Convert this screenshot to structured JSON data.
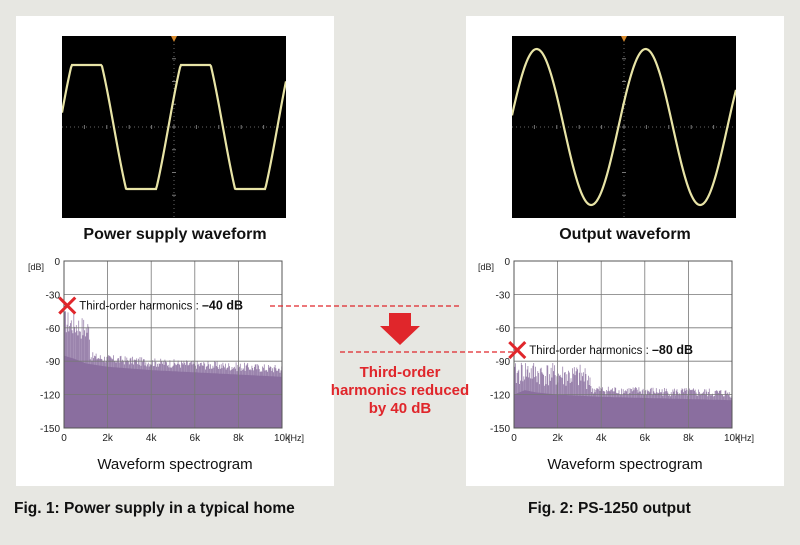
{
  "left": {
    "waveform_title": "Power supply waveform",
    "spectrogram_label": "Waveform spectrogram",
    "caption": "Fig. 1: Power supply in a typical home",
    "harmonic_label": "Third-order harmonics : ",
    "harmonic_value": "–40 dB"
  },
  "right": {
    "waveform_title": "Output waveform",
    "spectrogram_label": "Waveform spectrogram",
    "caption": "Fig. 2: PS-1250 output",
    "harmonic_label": "Third-order harmonics : ",
    "harmonic_value": "–80 dB"
  },
  "middle": {
    "line1": "Third-order",
    "line2": "harmonics reduced",
    "line3": "by 40 dB"
  },
  "colors": {
    "accent_red": "#e0262b",
    "spectrum_fill": "#8a6f9f",
    "trace": "#e8e4a6"
  },
  "chart_data": [
    {
      "type": "area",
      "name": "left-spectrum",
      "ylabel": "[dB]",
      "xlabel": "[Hz]",
      "ylim": [
        -150,
        0
      ],
      "xlim": [
        0,
        10000
      ],
      "y_ticks": [
        "0",
        "-30",
        "-60",
        "-90",
        "-120",
        "-150"
      ],
      "x_ticks": [
        "0",
        "2k",
        "4k",
        "6k",
        "8k",
        "10k"
      ],
      "harmonic_marker": {
        "x": 150,
        "y": -40
      },
      "envelope": [
        {
          "x": 0,
          "y": -85
        },
        {
          "x": 500,
          "y": -88
        },
        {
          "x": 1000,
          "y": -92
        },
        {
          "x": 2000,
          "y": -95
        },
        {
          "x": 4000,
          "y": -98
        },
        {
          "x": 6000,
          "y": -100
        },
        {
          "x": 8000,
          "y": -102
        },
        {
          "x": 10000,
          "y": -104
        }
      ],
      "grid": true
    },
    {
      "type": "area",
      "name": "right-spectrum",
      "ylabel": "[dB]",
      "xlabel": "[Hz]",
      "ylim": [
        -150,
        0
      ],
      "xlim": [
        0,
        10000
      ],
      "y_ticks": [
        "0",
        "-30",
        "-60",
        "-90",
        "-120",
        "-150"
      ],
      "x_ticks": [
        "0",
        "2k",
        "4k",
        "6k",
        "8k",
        "10k"
      ],
      "harmonic_marker": {
        "x": 150,
        "y": -80
      },
      "envelope": [
        {
          "x": 0,
          "y": -120
        },
        {
          "x": 500,
          "y": -116
        },
        {
          "x": 1000,
          "y": -118
        },
        {
          "x": 2000,
          "y": -120
        },
        {
          "x": 4000,
          "y": -122
        },
        {
          "x": 6000,
          "y": -123
        },
        {
          "x": 8000,
          "y": -124
        },
        {
          "x": 10000,
          "y": -125
        }
      ],
      "grid": true
    }
  ]
}
